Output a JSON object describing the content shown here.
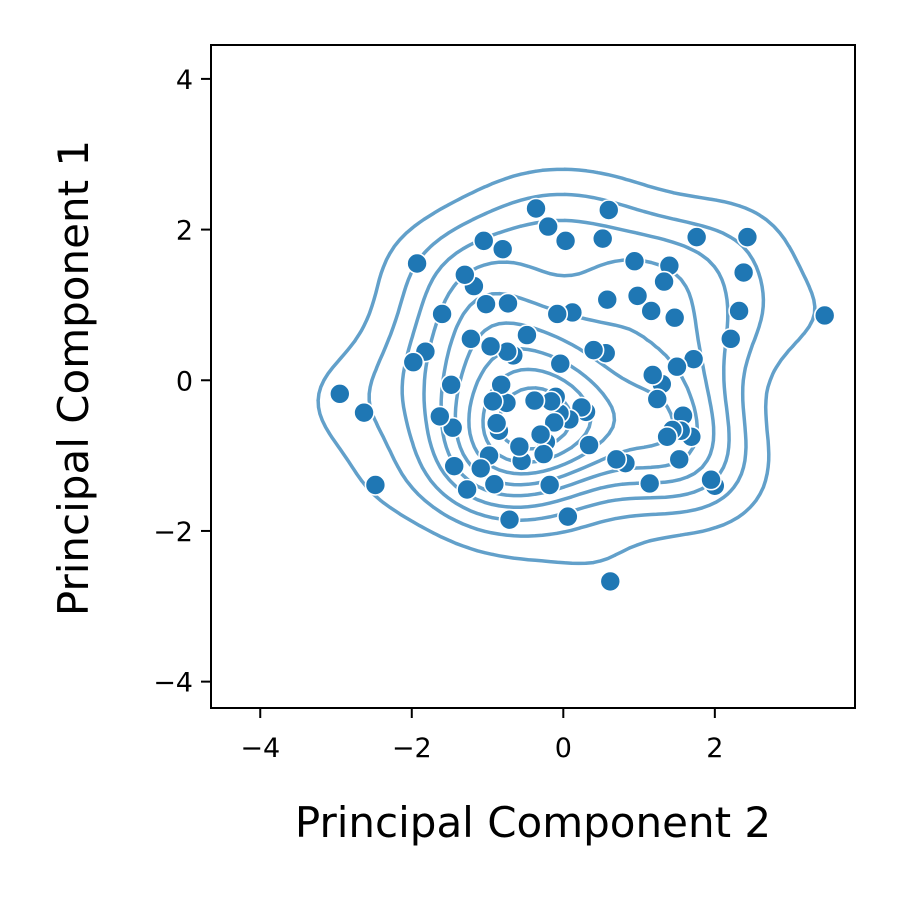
{
  "chart_data": {
    "type": "scatter",
    "title": "",
    "xlabel": "Principal Component 2",
    "ylabel": "Principal Component 1",
    "xlim": [
      -4.65,
      3.85
    ],
    "ylim": [
      -4.35,
      4.45
    ],
    "xticks": [
      -4,
      -2,
      0,
      2
    ],
    "yticks": [
      -4,
      -2,
      0,
      2,
      4
    ],
    "xtick_labels": [
      "−4",
      "−2",
      "0",
      "2"
    ],
    "ytick_labels": [
      "−4",
      "−2",
      "0",
      "2",
      "4"
    ],
    "grid": false,
    "legend": "none",
    "overlay": "kde-density-contours",
    "point_color": "#1f77b4",
    "contour_color": "#1f77b4",
    "points": [
      [
        3.45,
        0.86
      ],
      [
        2.43,
        1.9
      ],
      [
        2.38,
        1.43
      ],
      [
        2.32,
        0.92
      ],
      [
        2.21,
        0.55
      ],
      [
        2.0,
        -1.4
      ],
      [
        1.95,
        -1.32
      ],
      [
        1.76,
        1.9
      ],
      [
        1.72,
        0.28
      ],
      [
        1.69,
        -0.75
      ],
      [
        1.58,
        -0.47
      ],
      [
        1.55,
        -0.67
      ],
      [
        1.53,
        -1.05
      ],
      [
        1.5,
        0.18
      ],
      [
        1.47,
        0.83
      ],
      [
        1.44,
        -0.66
      ],
      [
        1.4,
        1.52
      ],
      [
        1.37,
        -0.75
      ],
      [
        1.33,
        1.31
      ],
      [
        1.3,
        -0.05
      ],
      [
        1.24,
        -0.25
      ],
      [
        1.18,
        0.07
      ],
      [
        1.16,
        0.92
      ],
      [
        1.14,
        -1.37
      ],
      [
        0.98,
        1.12
      ],
      [
        0.94,
        1.58
      ],
      [
        0.82,
        -1.1
      ],
      [
        0.7,
        -1.05
      ],
      [
        0.62,
        -2.67
      ],
      [
        0.6,
        2.26
      ],
      [
        0.58,
        1.07
      ],
      [
        0.56,
        0.36
      ],
      [
        0.52,
        1.88
      ],
      [
        0.4,
        0.4
      ],
      [
        0.34,
        -0.86
      ],
      [
        0.3,
        -0.42
      ],
      [
        0.24,
        -0.36
      ],
      [
        0.12,
        0.9
      ],
      [
        0.08,
        -0.52
      ],
      [
        0.06,
        -1.81
      ],
      [
        0.03,
        1.85
      ],
      [
        -0.04,
        0.22
      ],
      [
        -0.05,
        -0.44
      ],
      [
        -0.08,
        0.88
      ],
      [
        -0.1,
        -0.22
      ],
      [
        -0.12,
        -0.56
      ],
      [
        -0.16,
        -0.28
      ],
      [
        -0.18,
        -1.39
      ],
      [
        -0.2,
        2.04
      ],
      [
        -0.23,
        -0.82
      ],
      [
        -0.26,
        -0.98
      ],
      [
        -0.3,
        -0.72
      ],
      [
        -0.36,
        2.28
      ],
      [
        -0.38,
        -0.27
      ],
      [
        -0.48,
        0.6
      ],
      [
        -0.55,
        -1.07
      ],
      [
        -0.58,
        -0.88
      ],
      [
        -0.66,
        0.33
      ],
      [
        -0.71,
        -1.85
      ],
      [
        -0.73,
        1.02
      ],
      [
        -0.74,
        0.38
      ],
      [
        -0.75,
        -0.3
      ],
      [
        -0.8,
        1.74
      ],
      [
        -0.82,
        -0.06
      ],
      [
        -0.85,
        -0.67
      ],
      [
        -0.88,
        -0.57
      ],
      [
        -0.91,
        -1.38
      ],
      [
        -0.93,
        -0.28
      ],
      [
        -0.96,
        0.45
      ],
      [
        -0.98,
        -1.0
      ],
      [
        -1.02,
        1.01
      ],
      [
        -1.05,
        1.85
      ],
      [
        -1.09,
        -1.17
      ],
      [
        -1.18,
        1.25
      ],
      [
        -1.22,
        0.55
      ],
      [
        -1.27,
        -1.45
      ],
      [
        -1.3,
        1.4
      ],
      [
        -1.44,
        -1.14
      ],
      [
        -1.46,
        -0.63
      ],
      [
        -1.48,
        -0.06
      ],
      [
        -1.6,
        0.88
      ],
      [
        -1.63,
        -0.48
      ],
      [
        -1.82,
        0.38
      ],
      [
        -1.98,
        0.24
      ],
      [
        -1.93,
        1.55
      ],
      [
        -2.48,
        -1.39
      ],
      [
        -2.63,
        -0.43
      ],
      [
        -2.95,
        -0.18
      ]
    ]
  }
}
